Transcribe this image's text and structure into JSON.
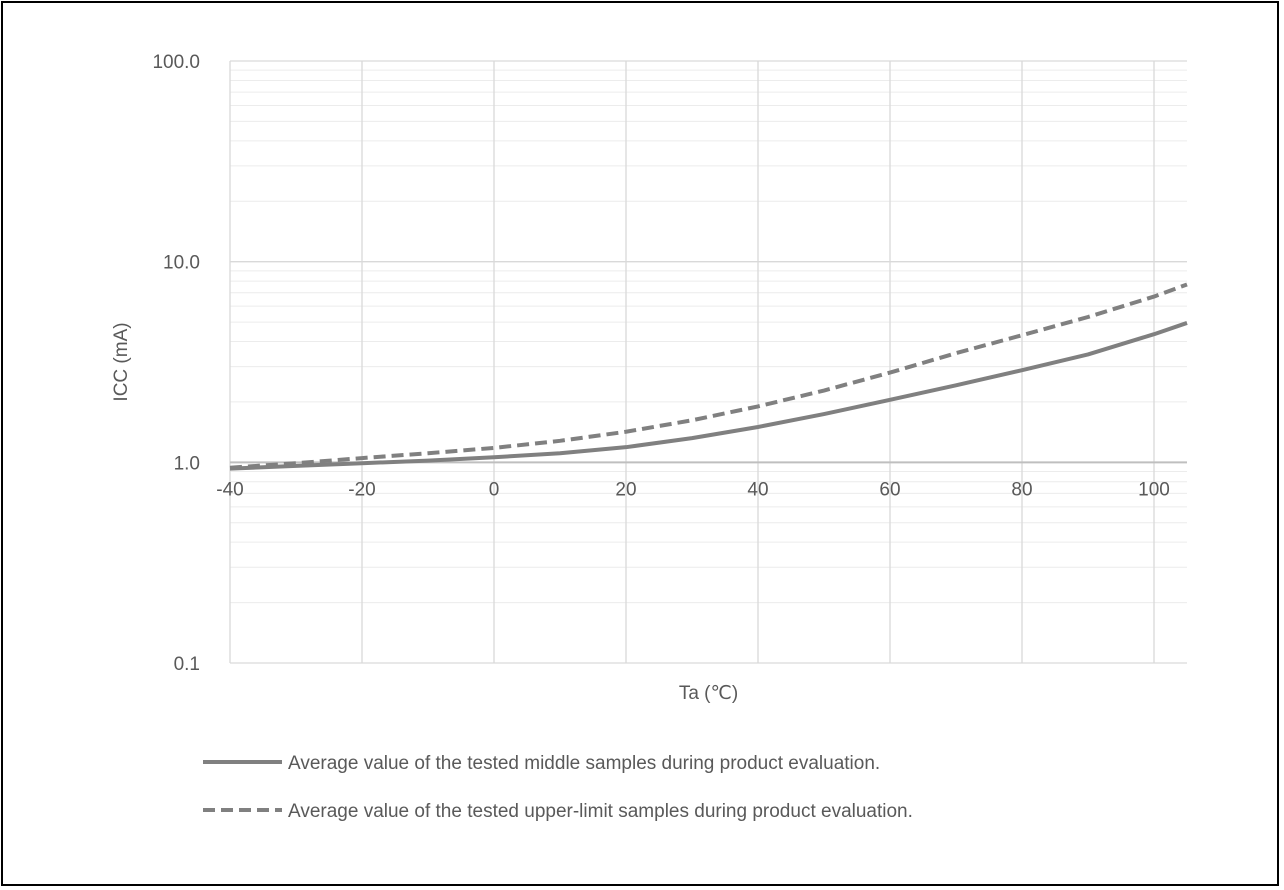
{
  "chart_data": {
    "type": "line",
    "title": "",
    "xlabel": "Ta (℃)",
    "ylabel": "ICC (mA)",
    "x_axis": {
      "min": -40,
      "max": 105,
      "ticks": [
        -40,
        -20,
        0,
        20,
        40,
        60,
        80,
        100
      ],
      "tick_labels": [
        "-40",
        "-20",
        "0",
        "20",
        "40",
        "60",
        "80",
        "100"
      ],
      "crosses_y_at": 1.0
    },
    "y_axis": {
      "scale": "log",
      "min": 0.1,
      "max": 100,
      "ticks": [
        0.1,
        1.0,
        10.0,
        100.0
      ],
      "tick_labels": [
        "0.1",
        "1.0",
        "10.0",
        "100.0"
      ],
      "minor_gridlines": true
    },
    "grid": true,
    "legend_position": "bottom",
    "series": [
      {
        "name": "Average value of the tested middle samples during product evaluation.",
        "style": "solid",
        "color": "#808080",
        "x": [
          -40,
          -30,
          -20,
          -10,
          0,
          10,
          20,
          30,
          40,
          50,
          60,
          70,
          80,
          90,
          100,
          105
        ],
        "y": [
          0.93,
          0.96,
          0.99,
          1.02,
          1.06,
          1.11,
          1.19,
          1.32,
          1.5,
          1.74,
          2.05,
          2.42,
          2.88,
          3.45,
          4.35,
          4.95
        ]
      },
      {
        "name": "Average value of the tested upper-limit samples during product evaluation.",
        "style": "dashed",
        "color": "#808080",
        "x": [
          -40,
          -30,
          -20,
          -10,
          0,
          10,
          20,
          30,
          40,
          50,
          60,
          70,
          80,
          90,
          100,
          105
        ],
        "y": [
          0.94,
          0.99,
          1.05,
          1.11,
          1.18,
          1.28,
          1.42,
          1.62,
          1.9,
          2.28,
          2.8,
          3.5,
          4.3,
          5.3,
          6.7,
          7.7
        ]
      }
    ]
  }
}
